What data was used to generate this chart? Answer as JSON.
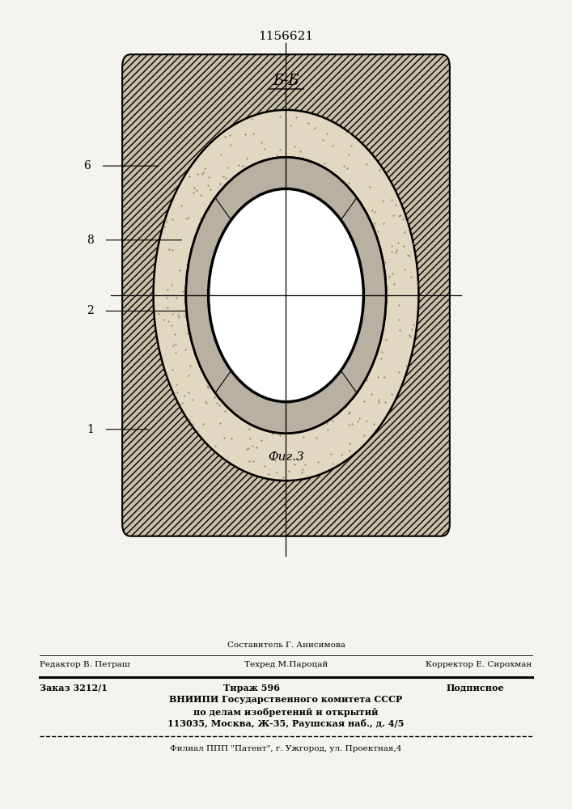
{
  "title_number": "1156621",
  "section_label": "Б-Б",
  "figure_label": "Фиг.3",
  "footer_line0_center": "Составитель Г. Анисимова",
  "footer_line1_left": "Редактор В. Петраш",
  "footer_line1_center": "Техред М.Пароцай",
  "footer_line1_right": "Корректор Е. Сирохман",
  "footer_bold1_left": "Заказ 3212/1",
  "footer_bold1_center": "Тираж 596",
  "footer_bold1_right": "Подписное",
  "footer_bold2": "ВНИИПИ Государственного комитета СССР",
  "footer_bold3": "по делам изобретений и открытий",
  "footer_bold4": "113035, Москва, Ж-35, Раушская наб., д. 4/5",
  "footer_last": "Филиал ППП \"Патент\", г. Ужгород, ул. Проектная,4",
  "bg_color": "#f5f3ef"
}
